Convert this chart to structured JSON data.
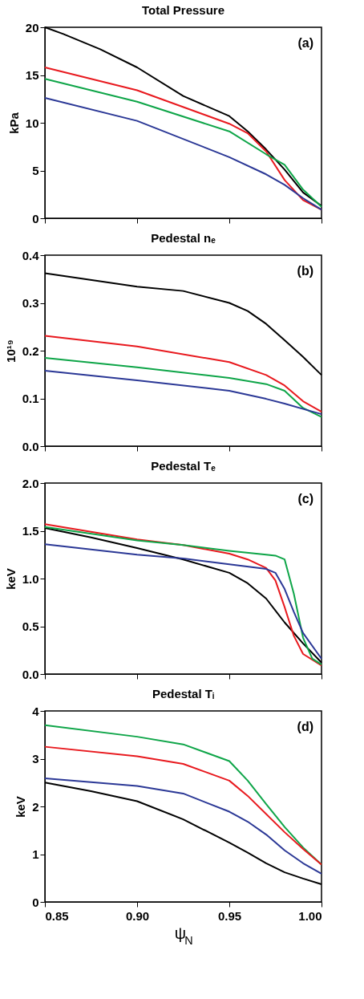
{
  "chart_data": [
    {
      "type": "line",
      "title": "Total Pressure",
      "ylabel": "kPa",
      "annotations": [
        "(a)"
      ],
      "xlim": [
        0.85,
        1.0
      ],
      "ylim": [
        0,
        20
      ],
      "yticks": [
        0,
        5,
        10,
        15,
        20
      ],
      "tick_labels": "y",
      "series": [
        {
          "color": "#000000",
          "x": [
            0.85,
            0.86,
            0.88,
            0.9,
            0.925,
            0.95,
            0.96,
            0.97,
            0.98,
            0.99,
            1.0
          ],
          "values": [
            20,
            19.3,
            17.7,
            15.8,
            12.8,
            10.7,
            9.1,
            7.2,
            5.1,
            2.7,
            1.3
          ]
        },
        {
          "color": "#e8191e",
          "x": [
            0.85,
            0.9,
            0.95,
            0.96,
            0.97,
            0.98,
            0.99,
            1.0
          ],
          "values": [
            15.8,
            13.4,
            9.9,
            8.9,
            7.0,
            4.0,
            1.9,
            0.9
          ]
        },
        {
          "color": "#0ea548",
          "x": [
            0.85,
            0.9,
            0.95,
            0.97,
            0.98,
            0.99,
            1.0
          ],
          "values": [
            14.6,
            12.2,
            9.1,
            6.7,
            5.6,
            3.0,
            1.2
          ]
        },
        {
          "color": "#2b3896",
          "x": [
            0.85,
            0.9,
            0.95,
            0.97,
            0.98,
            0.99,
            1.0
          ],
          "values": [
            12.6,
            10.2,
            6.4,
            4.6,
            3.5,
            2.1,
            0.9
          ]
        }
      ]
    },
    {
      "type": "line",
      "title": "Pedestal nₑ",
      "ylabel": "10¹⁹",
      "annotations": [
        "(b)"
      ],
      "xlim": [
        0.85,
        1.0
      ],
      "ylim": [
        0,
        0.4
      ],
      "yticks": [
        {
          "value": 0,
          "label": "0.0"
        },
        0.1,
        0.2,
        0.3,
        0.4
      ],
      "tick_labels": "y",
      "series": [
        {
          "color": "#000000",
          "x": [
            0.85,
            0.9,
            0.925,
            0.95,
            0.96,
            0.97,
            0.98,
            0.99,
            1.0
          ],
          "values": [
            0.362,
            0.334,
            0.325,
            0.3,
            0.283,
            0.256,
            0.222,
            0.187,
            0.149
          ]
        },
        {
          "color": "#e8191e",
          "x": [
            0.85,
            0.9,
            0.95,
            0.97,
            0.98,
            0.99,
            1.0
          ],
          "values": [
            0.231,
            0.209,
            0.176,
            0.149,
            0.127,
            0.094,
            0.072
          ]
        },
        {
          "color": "#0ea548",
          "x": [
            0.85,
            0.9,
            0.95,
            0.97,
            0.98,
            0.99,
            1.0
          ],
          "values": [
            0.185,
            0.165,
            0.143,
            0.13,
            0.116,
            0.08,
            0.061
          ]
        },
        {
          "color": "#2b3896",
          "x": [
            0.85,
            0.9,
            0.95,
            0.97,
            0.98,
            0.99,
            1.0
          ],
          "values": [
            0.158,
            0.138,
            0.116,
            0.099,
            0.089,
            0.078,
            0.067
          ]
        }
      ]
    },
    {
      "type": "line",
      "title": "Pedestal Tₑ",
      "ylabel": "keV",
      "annotations": [
        "(c)"
      ],
      "xlim": [
        0.85,
        1.0
      ],
      "ylim": [
        0,
        2
      ],
      "yticks": [
        {
          "value": 0,
          "label": "0.0"
        },
        0.5,
        {
          "value": 1,
          "label": "1.0"
        },
        1.5,
        {
          "value": 2,
          "label": "2.0"
        }
      ],
      "tick_labels": "y",
      "series": [
        {
          "color": "#000000",
          "x": [
            0.85,
            0.875,
            0.9,
            0.925,
            0.95,
            0.96,
            0.97,
            0.98,
            0.99,
            1.0
          ],
          "values": [
            1.53,
            1.43,
            1.32,
            1.2,
            1.06,
            0.95,
            0.79,
            0.54,
            0.32,
            0.12
          ]
        },
        {
          "color": "#e8191e",
          "x": [
            0.85,
            0.9,
            0.925,
            0.95,
            0.96,
            0.97,
            0.975,
            0.98,
            0.985,
            0.99,
            1.0
          ],
          "values": [
            1.57,
            1.41,
            1.35,
            1.26,
            1.2,
            1.11,
            0.98,
            0.7,
            0.4,
            0.21,
            0.09
          ]
        },
        {
          "color": "#0ea548",
          "x": [
            0.85,
            0.9,
            0.925,
            0.95,
            0.97,
            0.975,
            0.98,
            0.985,
            0.99,
            0.995,
            1.0
          ],
          "values": [
            1.54,
            1.4,
            1.35,
            1.29,
            1.25,
            1.24,
            1.2,
            0.84,
            0.38,
            0.16,
            0.1
          ]
        },
        {
          "color": "#2b3896",
          "x": [
            0.85,
            0.9,
            0.925,
            0.95,
            0.97,
            0.975,
            0.98,
            0.985,
            0.99,
            1.0
          ],
          "values": [
            1.36,
            1.25,
            1.21,
            1.15,
            1.1,
            1.06,
            0.89,
            0.65,
            0.43,
            0.16
          ]
        }
      ]
    },
    {
      "type": "line",
      "title": "Pedestal Tᵢ",
      "ylabel": "keV",
      "xlabel": "ψ$_{N}$",
      "annotations": [
        "(d)"
      ],
      "xlim": [
        0.85,
        1.0
      ],
      "xticks": [
        0.85,
        {
          "value": 0.9,
          "label": "0.90"
        },
        0.95,
        {
          "value": 1.0,
          "label": "1.00"
        }
      ],
      "ylim": [
        0,
        4
      ],
      "yticks": [
        0,
        1,
        2,
        3,
        4
      ],
      "series": [
        {
          "color": "#0ea548",
          "x": [
            0.85,
            0.9,
            0.925,
            0.95,
            0.96,
            0.97,
            0.98,
            0.99,
            1.0
          ],
          "values": [
            3.7,
            3.46,
            3.3,
            2.95,
            2.54,
            2.05,
            1.57,
            1.14,
            0.78
          ]
        },
        {
          "color": "#e8191e",
          "x": [
            0.85,
            0.9,
            0.925,
            0.95,
            0.96,
            0.97,
            0.98,
            0.99,
            1.0
          ],
          "values": [
            3.25,
            3.05,
            2.89,
            2.54,
            2.22,
            1.84,
            1.46,
            1.11,
            0.78
          ]
        },
        {
          "color": "#2b3896",
          "x": [
            0.85,
            0.9,
            0.925,
            0.95,
            0.96,
            0.97,
            0.98,
            0.99,
            1.0
          ],
          "values": [
            2.59,
            2.43,
            2.27,
            1.89,
            1.68,
            1.41,
            1.08,
            0.81,
            0.59
          ]
        },
        {
          "color": "#000000",
          "x": [
            0.85,
            0.875,
            0.9,
            0.925,
            0.95,
            0.96,
            0.97,
            0.98,
            0.99,
            1.0
          ],
          "values": [
            2.5,
            2.32,
            2.11,
            1.73,
            1.24,
            1.03,
            0.81,
            0.62,
            0.49,
            0.37
          ]
        }
      ]
    }
  ]
}
